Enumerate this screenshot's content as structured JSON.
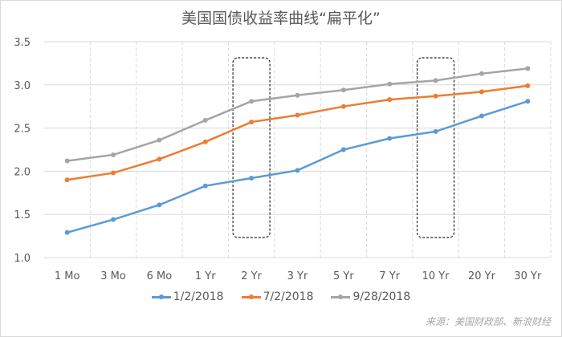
{
  "chart_data": {
    "type": "line",
    "title": "美国国债收益率曲线“扁平化”",
    "categories": [
      "1 Mo",
      "3 Mo",
      "6 Mo",
      "1 Yr",
      "2 Yr",
      "3 Yr",
      "5 Yr",
      "7 Yr",
      "10 Yr",
      "20 Yr",
      "30 Yr"
    ],
    "series": [
      {
        "name": "1/2/2018",
        "color": "#5b9bd5",
        "values": [
          1.29,
          1.44,
          1.61,
          1.83,
          1.92,
          2.01,
          2.25,
          2.38,
          2.46,
          2.64,
          2.81
        ]
      },
      {
        "name": "7/2/2018",
        "color": "#ed7d31",
        "values": [
          1.9,
          1.98,
          2.14,
          2.34,
          2.57,
          2.65,
          2.75,
          2.83,
          2.87,
          2.92,
          2.99
        ]
      },
      {
        "name": "9/28/2018",
        "color": "#a5a5a5",
        "values": [
          2.12,
          2.19,
          2.36,
          2.59,
          2.81,
          2.88,
          2.94,
          3.01,
          3.05,
          3.13,
          3.19
        ]
      }
    ],
    "ylim": [
      1.0,
      3.5
    ],
    "yticks": [
      "1.0",
      "1.5",
      "2.0",
      "2.5",
      "3.0",
      "3.5"
    ],
    "grid": true,
    "legend": "bottom",
    "highlighted_categories": [
      "2 Yr",
      "10 Yr"
    ],
    "xlabel": "",
    "ylabel": ""
  },
  "source": "来源：美国财政部、新浪财经"
}
